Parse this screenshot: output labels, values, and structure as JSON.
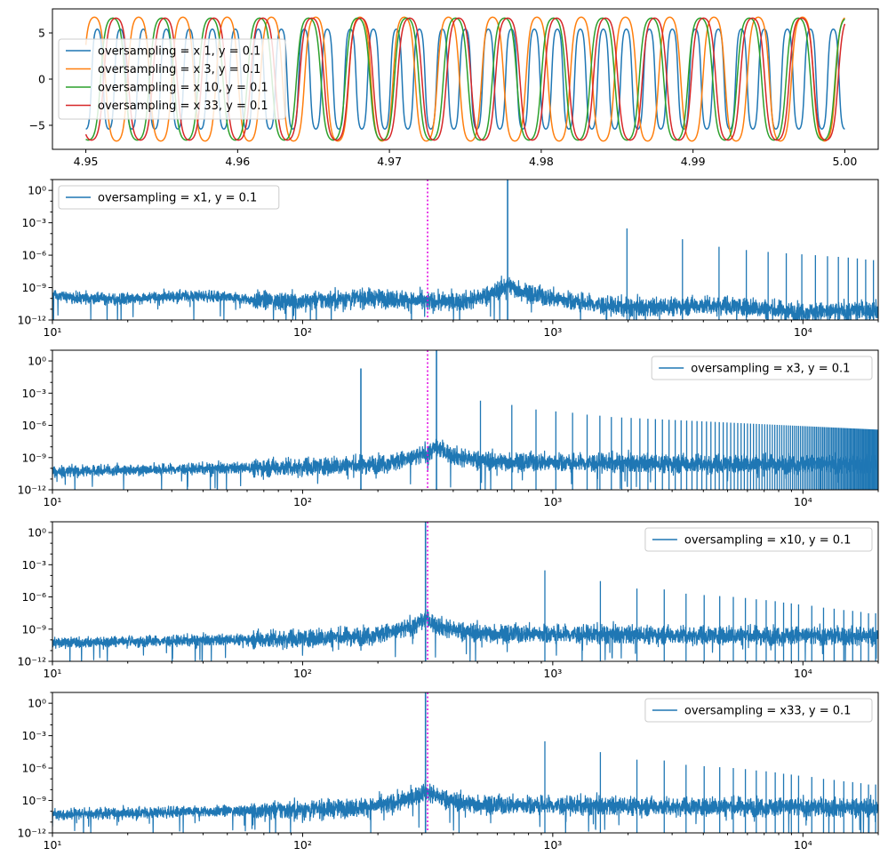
{
  "chart_data": [
    {
      "type": "line",
      "title": "",
      "xlabel": "",
      "ylabel": "",
      "xlim": [
        4.9478,
        5.0022
      ],
      "ylim": [
        -7.6,
        7.6
      ],
      "xscale": "linear",
      "yscale": "linear",
      "xticks": [
        4.95,
        4.96,
        4.97,
        4.98,
        4.99,
        5.0
      ],
      "xtick_labels": [
        "4.95",
        "4.96",
        "4.97",
        "4.98",
        "4.99",
        "5.00"
      ],
      "yticks": [
        -5,
        0,
        5
      ],
      "ytick_labels": [
        "−5",
        "0",
        "5"
      ],
      "grid": false,
      "legend_position": "center-left",
      "series": [
        {
          "name": "oversampling = x 1, y = 0.1",
          "color": "#1f77b4",
          "frequency_hz": 660,
          "amplitude": 5.4,
          "phase": 4.71,
          "x_start": 4.95,
          "x_end": 5.0
        },
        {
          "name": "oversampling = x 3, y = 0.1",
          "color": "#ff7f0e",
          "frequency_hz": 343,
          "amplitude": 6.7,
          "phase": 1.3,
          "x_start": 4.95,
          "x_end": 5.0
        },
        {
          "name": "oversampling = x 10, y = 0.1",
          "color": "#2ca02c",
          "frequency_hz": 310,
          "amplitude": 6.6,
          "phase": 1.25,
          "x_start": 4.95,
          "x_end": 5.0
        },
        {
          "name": "oversampling = x 33, y = 0.1",
          "color": "#d62728",
          "frequency_hz": 310,
          "amplitude": 6.6,
          "phase": 0.85,
          "x_start": 4.95,
          "x_end": 5.0
        }
      ]
    },
    {
      "type": "line",
      "title": "",
      "xlabel": "",
      "ylabel": "",
      "xscale": "log",
      "yscale": "log",
      "xlim": [
        10,
        20000
      ],
      "ylim": [
        1e-12,
        10
      ],
      "xtick_labels": [
        "10¹",
        "10²",
        "10³",
        "10⁴"
      ],
      "ytick_labels": [
        "10⁻¹²",
        "10⁻⁹",
        "10⁻⁶",
        "10⁻³",
        "10⁰"
      ],
      "grid": false,
      "legend_position": "top-left",
      "reference_line": {
        "x": 316,
        "color": "#e000e0",
        "style": "dotted"
      },
      "series": [
        {
          "name": "oversampling = x1, y = 0.1",
          "color": "#1f77b4",
          "fundamental_hz": 660,
          "peaks": [
            [
              660,
              10
            ],
            [
              1980,
              0.0003
            ],
            [
              3300,
              3e-05
            ],
            [
              4620,
              6e-06
            ],
            [
              5940,
              3e-06
            ],
            [
              7260,
              2e-06
            ],
            [
              8580,
              1.5e-06
            ],
            [
              9900,
              1.2e-06
            ],
            [
              11220,
              1e-06
            ],
            [
              12540,
              8e-07
            ],
            [
              13860,
              7e-07
            ],
            [
              15180,
              6e-07
            ],
            [
              16500,
              5e-07
            ],
            [
              17820,
              4e-07
            ],
            [
              19140,
              3.5e-07
            ]
          ],
          "noise_floor": 1e-10
        }
      ]
    },
    {
      "type": "line",
      "title": "",
      "xlabel": "",
      "ylabel": "",
      "xscale": "log",
      "yscale": "log",
      "xlim": [
        10,
        20000
      ],
      "ylim": [
        1e-12,
        10
      ],
      "xtick_labels": [
        "10¹",
        "10²",
        "10³",
        "10⁴"
      ],
      "ytick_labels": [
        "10⁻¹²",
        "10⁻⁹",
        "10⁻⁶",
        "10⁻³",
        "10⁰"
      ],
      "grid": false,
      "legend_position": "top-right",
      "reference_line": {
        "x": 316,
        "color": "#e000e0",
        "style": "dotted"
      },
      "series": [
        {
          "name": "oversampling = x3, y = 0.1",
          "color": "#1f77b4",
          "fundamental_hz": 343,
          "peaks": [
            [
              171,
              0.2
            ],
            [
              343,
              10
            ],
            [
              514,
              0.0002
            ],
            [
              686,
              8e-05
            ],
            [
              857,
              3e-05
            ],
            [
              1029,
              2e-05
            ],
            [
              1200,
              1.5e-05
            ],
            [
              1372,
              1e-05
            ],
            [
              1543,
              8e-06
            ],
            [
              1715,
              6e-06
            ]
          ],
          "comb_spacing_hz": 171.5,
          "comb_envelope": [
            [
              1715,
              6e-06
            ],
            [
              20000,
              4e-07
            ]
          ],
          "noise_floor": 1e-10
        }
      ]
    },
    {
      "type": "line",
      "title": "",
      "xlabel": "",
      "ylabel": "",
      "xscale": "log",
      "yscale": "log",
      "xlim": [
        10,
        20000
      ],
      "ylim": [
        1e-12,
        10
      ],
      "xtick_labels": [
        "10¹",
        "10²",
        "10³",
        "10⁴"
      ],
      "ytick_labels": [
        "10⁻¹²",
        "10⁻⁹",
        "10⁻⁶",
        "10⁻³",
        "10⁰"
      ],
      "grid": false,
      "legend_position": "top-right",
      "reference_line": {
        "x": 316,
        "color": "#e000e0",
        "style": "dotted"
      },
      "series": [
        {
          "name": "oversampling = x10, y = 0.1",
          "color": "#1f77b4",
          "fundamental_hz": 310,
          "peaks": [
            [
              310,
              10
            ],
            [
              930,
              0.0003
            ],
            [
              1550,
              3e-05
            ],
            [
              2170,
              6e-06
            ],
            [
              2790,
              5e-06
            ],
            [
              3410,
              2e-06
            ],
            [
              4030,
              1.5e-06
            ],
            [
              4650,
              1.2e-06
            ],
            [
              5270,
              1e-06
            ],
            [
              5890,
              8e-07
            ],
            [
              6510,
              6e-07
            ],
            [
              7130,
              5e-07
            ],
            [
              7750,
              4e-07
            ],
            [
              8370,
              3e-07
            ],
            [
              8990,
              2.5e-07
            ],
            [
              9610,
              2e-07
            ],
            [
              10850,
              1.5e-07
            ],
            [
              12090,
              1e-07
            ],
            [
              13330,
              8e-08
            ],
            [
              14570,
              6e-08
            ],
            [
              15810,
              5e-08
            ],
            [
              17050,
              4e-08
            ],
            [
              18290,
              3e-08
            ],
            [
              19530,
              3e-08
            ]
          ],
          "noise_floor": 1e-10
        }
      ]
    },
    {
      "type": "line",
      "title": "",
      "xlabel": "",
      "ylabel": "",
      "xscale": "log",
      "yscale": "log",
      "xlim": [
        10,
        20000
      ],
      "ylim": [
        1e-12,
        10
      ],
      "xtick_labels": [
        "10¹",
        "10²",
        "10³",
        "10⁴"
      ],
      "ytick_labels": [
        "10⁻¹²",
        "10⁻⁹",
        "10⁻⁶",
        "10⁻³",
        "10⁰"
      ],
      "grid": false,
      "legend_position": "top-right",
      "reference_line": {
        "x": 316,
        "color": "#e000e0",
        "style": "dotted"
      },
      "series": [
        {
          "name": "oversampling = x33, y = 0.1",
          "color": "#1f77b4",
          "fundamental_hz": 310,
          "peaks": [
            [
              310,
              10
            ],
            [
              930,
              0.0003
            ],
            [
              1550,
              3e-05
            ],
            [
              2170,
              6e-06
            ],
            [
              2790,
              5e-06
            ],
            [
              3410,
              2e-06
            ],
            [
              4030,
              1.5e-06
            ],
            [
              4650,
              1.2e-06
            ],
            [
              5270,
              1e-06
            ],
            [
              5890,
              8e-07
            ],
            [
              6510,
              6e-07
            ],
            [
              7130,
              5e-07
            ],
            [
              7750,
              4e-07
            ],
            [
              8370,
              3e-07
            ],
            [
              8990,
              2.5e-07
            ],
            [
              9610,
              2e-07
            ],
            [
              10850,
              1.5e-07
            ],
            [
              12090,
              1e-07
            ],
            [
              13330,
              8e-08
            ],
            [
              14570,
              6e-08
            ],
            [
              15810,
              5e-08
            ],
            [
              17050,
              4e-08
            ],
            [
              18290,
              3e-08
            ],
            [
              19530,
              3e-08
            ]
          ],
          "noise_floor": 1e-10
        }
      ]
    }
  ]
}
